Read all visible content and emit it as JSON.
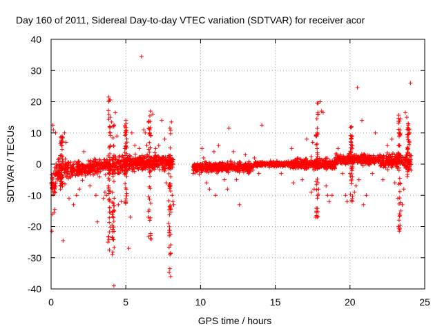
{
  "chart_data": {
    "type": "scatter",
    "title": "Day 160 of 2011, Sidereal Day-to-day VTEC variation (SDTVAR) for receiver acor",
    "xlabel": "GPS time / hours",
    "ylabel": "SDTVAR / TECUs",
    "xlim": [
      0,
      25
    ],
    "ylim": [
      -40,
      40
    ],
    "xticks": [
      "0",
      "5",
      "10",
      "15",
      "20",
      "25"
    ],
    "yticks": [
      "40",
      "30",
      "20",
      "10",
      "0",
      "-10",
      "-20",
      "-30",
      "-40"
    ],
    "grid": true,
    "marker": "+",
    "color": "#ff0000",
    "series": [
      {
        "name": "SDTVAR",
        "points": [
          [
            0.05,
            -21.5
          ],
          [
            0.1,
            -16
          ],
          [
            0.12,
            12.5
          ],
          [
            0.15,
            11
          ],
          [
            0.2,
            -15.5
          ],
          [
            0.25,
            -14.5
          ],
          [
            0.3,
            10
          ],
          [
            0.15,
            -3
          ],
          [
            0.22,
            -8
          ],
          [
            0.8,
            -24.5
          ],
          [
            0.9,
            10
          ],
          [
            1.0,
            7
          ],
          [
            1.2,
            -11
          ],
          [
            1.5,
            -13
          ],
          [
            1.7,
            -10
          ],
          [
            1.9,
            -8
          ],
          [
            2.2,
            4
          ],
          [
            2.6,
            -7
          ],
          [
            3.0,
            -10
          ],
          [
            3.1,
            -18.5
          ],
          [
            3.5,
            -11
          ],
          [
            3.6,
            -9
          ],
          [
            3.7,
            -10
          ],
          [
            3.8,
            -25
          ],
          [
            3.9,
            -27.5
          ],
          [
            4.0,
            -15.5
          ],
          [
            4.1,
            -29
          ],
          [
            4.2,
            -39
          ],
          [
            3.85,
            21.5
          ],
          [
            3.9,
            20.5
          ],
          [
            3.95,
            15
          ],
          [
            4.05,
            13.5
          ],
          [
            4.15,
            12
          ],
          [
            4.3,
            16.5
          ],
          [
            4.4,
            9
          ],
          [
            4.5,
            -13
          ],
          [
            4.7,
            -12
          ],
          [
            5.0,
            14
          ],
          [
            5.2,
            -27
          ],
          [
            5.3,
            -17
          ],
          [
            5.4,
            10
          ],
          [
            5.6,
            6
          ],
          [
            5.9,
            5
          ],
          [
            6.05,
            34.5
          ],
          [
            6.2,
            11
          ],
          [
            6.3,
            10
          ],
          [
            6.4,
            6
          ],
          [
            6.5,
            -17
          ],
          [
            6.6,
            -18
          ],
          [
            6.7,
            -24
          ],
          [
            6.65,
            17
          ],
          [
            6.8,
            16
          ],
          [
            7.0,
            5
          ],
          [
            7.2,
            6
          ],
          [
            7.4,
            14
          ],
          [
            7.6,
            8
          ],
          [
            7.7,
            -6
          ],
          [
            7.85,
            -19
          ],
          [
            7.9,
            -22
          ],
          [
            7.95,
            -29
          ],
          [
            8.0,
            -36
          ],
          [
            8.05,
            13.5
          ],
          [
            8.1,
            -10
          ],
          [
            8.15,
            -12
          ],
          [
            8.2,
            -13
          ],
          [
            9.5,
            -3
          ],
          [
            9.7,
            -1
          ],
          [
            10.1,
            5
          ],
          [
            10.2,
            2
          ],
          [
            10.4,
            -6
          ],
          [
            10.6,
            -8
          ],
          [
            10.9,
            4
          ],
          [
            11.0,
            -10
          ],
          [
            11.2,
            6
          ],
          [
            11.4,
            -1
          ],
          [
            11.6,
            -5
          ],
          [
            11.8,
            -8
          ],
          [
            11.9,
            11.5
          ],
          [
            12.2,
            4
          ],
          [
            12.4,
            -5
          ],
          [
            12.6,
            -13
          ],
          [
            13.0,
            3
          ],
          [
            13.2,
            -3
          ],
          [
            13.6,
            2
          ],
          [
            13.9,
            -3
          ],
          [
            14.1,
            12.5
          ],
          [
            14.6,
            -1
          ],
          [
            15.1,
            1
          ],
          [
            15.4,
            -3
          ],
          [
            15.6,
            0
          ],
          [
            16.1,
            5
          ],
          [
            16.2,
            -6
          ],
          [
            16.5,
            2
          ],
          [
            16.8,
            -5
          ],
          [
            17.1,
            8
          ],
          [
            17.4,
            -9
          ],
          [
            17.5,
            7
          ],
          [
            17.6,
            -8
          ],
          [
            17.7,
            -17
          ],
          [
            17.8,
            -17
          ],
          [
            17.9,
            -8
          ],
          [
            18.0,
            20
          ],
          [
            18.1,
            17
          ],
          [
            18.2,
            16.5
          ],
          [
            18.4,
            -7
          ],
          [
            18.5,
            -10
          ],
          [
            18.6,
            -12
          ],
          [
            18.8,
            -10
          ],
          [
            19.0,
            1
          ],
          [
            19.2,
            5
          ],
          [
            19.5,
            -3
          ],
          [
            19.7,
            -10
          ],
          [
            19.8,
            -12
          ],
          [
            20.0,
            -3
          ],
          [
            20.1,
            12
          ],
          [
            20.3,
            -9
          ],
          [
            20.4,
            -7
          ],
          [
            20.5,
            24.5
          ],
          [
            20.6,
            -5
          ],
          [
            20.8,
            14
          ],
          [
            20.9,
            -13
          ],
          [
            21.1,
            -10
          ],
          [
            21.5,
            -3
          ],
          [
            21.7,
            10
          ],
          [
            22.0,
            3
          ],
          [
            22.2,
            -5
          ],
          [
            22.5,
            6
          ],
          [
            22.8,
            8
          ],
          [
            23.0,
            -6
          ],
          [
            23.2,
            -11
          ],
          [
            23.3,
            -21.5
          ],
          [
            23.4,
            -15
          ],
          [
            23.5,
            -13
          ],
          [
            23.6,
            -8
          ],
          [
            23.7,
            16.5
          ],
          [
            23.8,
            15
          ],
          [
            23.9,
            13
          ],
          [
            24.0,
            10
          ],
          [
            24.05,
            26
          ]
        ]
      }
    ]
  }
}
